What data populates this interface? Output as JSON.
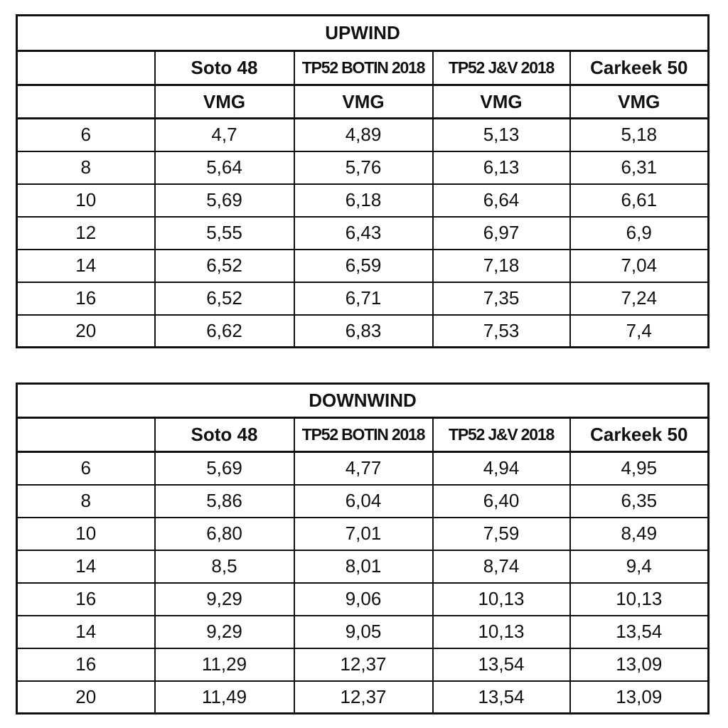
{
  "tables": [
    {
      "title": "UPWIND",
      "header": [
        "Soto 48",
        "TP52 BOTIN 2018",
        "TP52 J&V 2018",
        "Carkeek 50"
      ],
      "subheader": [
        "VMG",
        "VMG",
        "VMG",
        "VMG"
      ],
      "rows": [
        [
          "6",
          "4,7",
          "4,89",
          "5,13",
          "5,18"
        ],
        [
          "8",
          "5,64",
          "5,76",
          "6,13",
          "6,31"
        ],
        [
          "10",
          "5,69",
          "6,18",
          "6,64",
          "6,61"
        ],
        [
          "12",
          "5,55",
          "6,43",
          "6,97",
          "6,9"
        ],
        [
          "14",
          "6,52",
          "6,59",
          "7,18",
          "7,04"
        ],
        [
          "16",
          "6,52",
          "6,71",
          "7,35",
          "7,24"
        ],
        [
          "20",
          "6,62",
          "6,83",
          "7,53",
          "7,4"
        ]
      ]
    },
    {
      "title": "DOWNWIND",
      "header": [
        "Soto 48",
        "TP52 BOTIN 2018",
        "TP52 J&V 2018",
        "Carkeek 50"
      ],
      "rows": [
        [
          "6",
          "5,69",
          "4,77",
          "4,94",
          "4,95"
        ],
        [
          "8",
          "5,86",
          "6,04",
          "6,40",
          "6,35"
        ],
        [
          "10",
          "6,80",
          "7,01",
          "7,59",
          "8,49"
        ],
        [
          "14",
          "8,5",
          "8,01",
          "8,74",
          "9,4"
        ],
        [
          "16",
          "9,29",
          "9,06",
          "10,13",
          "10,13"
        ],
        [
          "14",
          "9,29",
          "9,05",
          "10,13",
          "13,54"
        ],
        [
          "16",
          "11,29",
          "12,37",
          "13,54",
          "13,09"
        ],
        [
          "20",
          "11,49",
          "12,37",
          "13,54",
          "13,09"
        ]
      ]
    }
  ]
}
